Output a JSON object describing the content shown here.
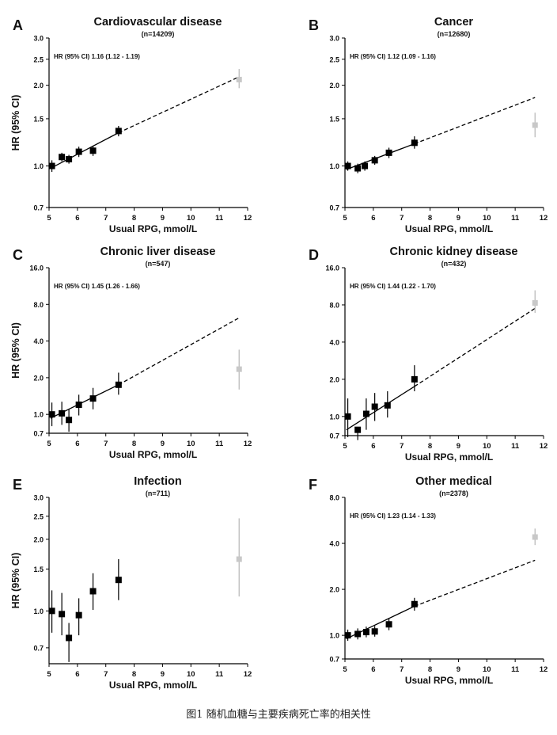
{
  "figure": {
    "caption": "图1 随机血糖与主要疾病死亡率的相关性"
  },
  "chart_data": [
    {
      "type": "scatter",
      "panel": "A",
      "title": "Cardiovascular disease",
      "subtitle": "(n=14209)",
      "hr_text": "HR (95% CI) 1.16 (1.12 - 1.19)",
      "xlabel": "Usual RPG, mmol/L",
      "ylabel": "HR (95% CI)",
      "xlim": [
        5,
        12
      ],
      "ylim": [
        0.7,
        3.0
      ],
      "yscale": "log",
      "xticks": [
        5,
        6,
        7,
        8,
        9,
        10,
        11,
        12
      ],
      "yticks": [
        0.7,
        1.0,
        1.5,
        2.0,
        2.5,
        3.0
      ],
      "ytick_labels": [
        "0.7",
        "1.0",
        "1.5",
        "2.0",
        "2.5",
        "3.0"
      ],
      "points": [
        {
          "x": 5.1,
          "y": 1.0,
          "lo": 0.95,
          "hi": 1.05
        },
        {
          "x": 5.45,
          "y": 1.08,
          "lo": 1.04,
          "hi": 1.12
        },
        {
          "x": 5.7,
          "y": 1.06,
          "lo": 1.02,
          "hi": 1.1
        },
        {
          "x": 6.05,
          "y": 1.13,
          "lo": 1.08,
          "hi": 1.18
        },
        {
          "x": 6.55,
          "y": 1.14,
          "lo": 1.09,
          "hi": 1.19
        },
        {
          "x": 7.45,
          "y": 1.35,
          "lo": 1.29,
          "hi": 1.41
        }
      ],
      "grey_point": {
        "x": 11.7,
        "y": 2.1,
        "lo": 1.95,
        "hi": 2.3
      },
      "fit_solid": [
        [
          5.05,
          0.98
        ],
        [
          7.45,
          1.33
        ]
      ],
      "fit_dashed": [
        [
          7.45,
          1.33
        ],
        [
          11.7,
          2.15
        ]
      ]
    },
    {
      "type": "scatter",
      "panel": "B",
      "title": "Cancer",
      "subtitle": "(n=12680)",
      "hr_text": "HR (95% CI) 1.12 (1.09 - 1.16)",
      "xlabel": "Usual RPG, mmol/L",
      "ylabel": "",
      "xlim": [
        5,
        12
      ],
      "ylim": [
        0.7,
        3.0
      ],
      "yscale": "log",
      "xticks": [
        5,
        6,
        7,
        8,
        9,
        10,
        11,
        12
      ],
      "yticks": [
        0.7,
        1.0,
        1.5,
        2.0,
        2.5,
        3.0
      ],
      "ytick_labels": [
        "0.7",
        "1.0",
        "1.5",
        "2.0",
        "2.5",
        "3.0"
      ],
      "points": [
        {
          "x": 5.1,
          "y": 1.0,
          "lo": 0.96,
          "hi": 1.04
        },
        {
          "x": 5.45,
          "y": 0.98,
          "lo": 0.94,
          "hi": 1.02
        },
        {
          "x": 5.7,
          "y": 1.0,
          "lo": 0.96,
          "hi": 1.04
        },
        {
          "x": 6.05,
          "y": 1.05,
          "lo": 1.01,
          "hi": 1.09
        },
        {
          "x": 6.55,
          "y": 1.12,
          "lo": 1.07,
          "hi": 1.17
        },
        {
          "x": 7.45,
          "y": 1.22,
          "lo": 1.16,
          "hi": 1.29
        }
      ],
      "grey_point": {
        "x": 11.7,
        "y": 1.42,
        "lo": 1.28,
        "hi": 1.58
      },
      "fit_solid": [
        [
          5.05,
          0.97
        ],
        [
          7.45,
          1.21
        ]
      ],
      "fit_dashed": [
        [
          7.45,
          1.21
        ],
        [
          11.7,
          1.8
        ]
      ]
    },
    {
      "type": "scatter",
      "panel": "C",
      "title": "Chronic liver disease",
      "subtitle": "(n=547)",
      "hr_text": "HR (95% CI) 1.45 (1.26 - 1.66)",
      "xlabel": "Usual RPG, mmol/L",
      "ylabel": "HR (95% CI)",
      "xlim": [
        5,
        12
      ],
      "ylim": [
        0.7,
        16.0
      ],
      "yscale": "log",
      "xticks": [
        5,
        6,
        7,
        8,
        9,
        10,
        11,
        12
      ],
      "yticks": [
        0.7,
        1.0,
        2.0,
        4.0,
        8.0,
        16.0
      ],
      "ytick_labels": [
        "0.7",
        "1.0",
        "2.0",
        "4.0",
        "8.0",
        "16.0"
      ],
      "points": [
        {
          "x": 5.1,
          "y": 1.0,
          "lo": 0.8,
          "hi": 1.25
        },
        {
          "x": 5.45,
          "y": 1.02,
          "lo": 0.82,
          "hi": 1.27
        },
        {
          "x": 5.7,
          "y": 0.9,
          "lo": 0.72,
          "hi": 1.1
        },
        {
          "x": 6.05,
          "y": 1.2,
          "lo": 0.98,
          "hi": 1.45
        },
        {
          "x": 6.55,
          "y": 1.35,
          "lo": 1.1,
          "hi": 1.65
        },
        {
          "x": 7.45,
          "y": 1.75,
          "lo": 1.45,
          "hi": 2.2
        }
      ],
      "grey_point": {
        "x": 11.7,
        "y": 2.35,
        "lo": 1.6,
        "hi": 3.4
      },
      "fit_solid": [
        [
          5.05,
          0.93
        ],
        [
          7.45,
          1.75
        ]
      ],
      "fit_dashed": [
        [
          7.45,
          1.75
        ],
        [
          11.7,
          6.2
        ]
      ]
    },
    {
      "type": "scatter",
      "panel": "D",
      "title": "Chronic kidney disease",
      "subtitle": "(n=432)",
      "hr_text": "HR (95% CI) 1.44 (1.22 - 1.70)",
      "xlabel": "Usual RPG, mmol/L",
      "ylabel": "",
      "xlim": [
        5,
        12
      ],
      "ylim": [
        0.7,
        16.0
      ],
      "yscale": "log",
      "xticks": [
        5,
        6,
        7,
        8,
        9,
        10,
        11,
        12
      ],
      "yticks": [
        0.7,
        1.0,
        2.0,
        4.0,
        8.0,
        16.0
      ],
      "ytick_labels": [
        "0.7",
        "1.0",
        "2.0",
        "4.0",
        "8.0",
        "16.0"
      ],
      "points": [
        {
          "x": 5.1,
          "y": 1.0,
          "lo": 0.68,
          "hi": 1.4
        },
        {
          "x": 5.45,
          "y": 0.78,
          "lo": 0.62,
          "hi": 0.78
        },
        {
          "x": 5.75,
          "y": 1.05,
          "lo": 0.78,
          "hi": 1.4
        },
        {
          "x": 6.05,
          "y": 1.2,
          "lo": 0.92,
          "hi": 1.55
        },
        {
          "x": 6.5,
          "y": 1.23,
          "lo": 0.98,
          "hi": 1.6
        },
        {
          "x": 7.45,
          "y": 2.0,
          "lo": 1.6,
          "hi": 2.6
        }
      ],
      "grey_point": {
        "x": 11.7,
        "y": 8.3,
        "lo": 6.9,
        "hi": 10.5
      },
      "fit_solid": [
        [
          5.05,
          0.78
        ],
        [
          7.45,
          1.75
        ]
      ],
      "fit_dashed": [
        [
          7.45,
          1.75
        ],
        [
          11.7,
          7.5
        ]
      ]
    },
    {
      "type": "scatter",
      "panel": "E",
      "title": "Infection",
      "subtitle": "(n=711)",
      "hr_text": "",
      "xlabel": "Usual RPG, mmol/L",
      "ylabel": "HR (95% CI)",
      "xlim": [
        5,
        12
      ],
      "ylim": [
        0.6,
        3.0
      ],
      "yscale": "log",
      "xticks": [
        5,
        6,
        7,
        8,
        9,
        10,
        11,
        12
      ],
      "yticks": [
        0.7,
        1.0,
        1.5,
        2.0,
        2.5,
        3.0
      ],
      "ytick_labels": [
        "0.7",
        "1.0",
        "1.5",
        "2.0",
        "2.5",
        "3.0"
      ],
      "points": [
        {
          "x": 5.1,
          "y": 1.0,
          "lo": 0.81,
          "hi": 1.22
        },
        {
          "x": 5.45,
          "y": 0.97,
          "lo": 0.79,
          "hi": 1.19
        },
        {
          "x": 5.7,
          "y": 0.77,
          "lo": 0.61,
          "hi": 0.89
        },
        {
          "x": 6.05,
          "y": 0.96,
          "lo": 0.79,
          "hi": 1.13
        },
        {
          "x": 6.55,
          "y": 1.21,
          "lo": 1.01,
          "hi": 1.44
        },
        {
          "x": 7.45,
          "y": 1.35,
          "lo": 1.11,
          "hi": 1.65
        }
      ],
      "grey_point": {
        "x": 11.7,
        "y": 1.65,
        "lo": 1.15,
        "hi": 2.45
      },
      "fit_solid": [],
      "fit_dashed": []
    },
    {
      "type": "scatter",
      "panel": "F",
      "title": "Other medical",
      "subtitle": "(n=2378)",
      "hr_text": "HR (95% CI) 1.23 (1.14 - 1.33)",
      "xlabel": "Usual RPG, mmol/L",
      "ylabel": "",
      "xlim": [
        5,
        12
      ],
      "ylim": [
        0.7,
        8.0
      ],
      "yscale": "log",
      "xticks": [
        5,
        6,
        7,
        8,
        9,
        10,
        11,
        12
      ],
      "yticks": [
        0.7,
        1.0,
        2.0,
        4.0,
        8.0
      ],
      "ytick_labels": [
        "0.7",
        "1.0",
        "2.0",
        "4.0",
        "8.0"
      ],
      "points": [
        {
          "x": 5.1,
          "y": 1.0,
          "lo": 0.92,
          "hi": 1.09
        },
        {
          "x": 5.45,
          "y": 1.02,
          "lo": 0.94,
          "hi": 1.11
        },
        {
          "x": 5.75,
          "y": 1.05,
          "lo": 0.97,
          "hi": 1.14
        },
        {
          "x": 6.05,
          "y": 1.06,
          "lo": 0.98,
          "hi": 1.15
        },
        {
          "x": 6.55,
          "y": 1.18,
          "lo": 1.08,
          "hi": 1.29
        },
        {
          "x": 7.45,
          "y": 1.6,
          "lo": 1.45,
          "hi": 1.76
        }
      ],
      "grey_point": {
        "x": 11.7,
        "y": 4.4,
        "lo": 3.9,
        "hi": 5.0
      },
      "fit_solid": [
        [
          5.05,
          0.95
        ],
        [
          7.45,
          1.55
        ]
      ],
      "fit_dashed": [
        [
          7.45,
          1.55
        ],
        [
          11.7,
          3.1
        ]
      ]
    }
  ]
}
